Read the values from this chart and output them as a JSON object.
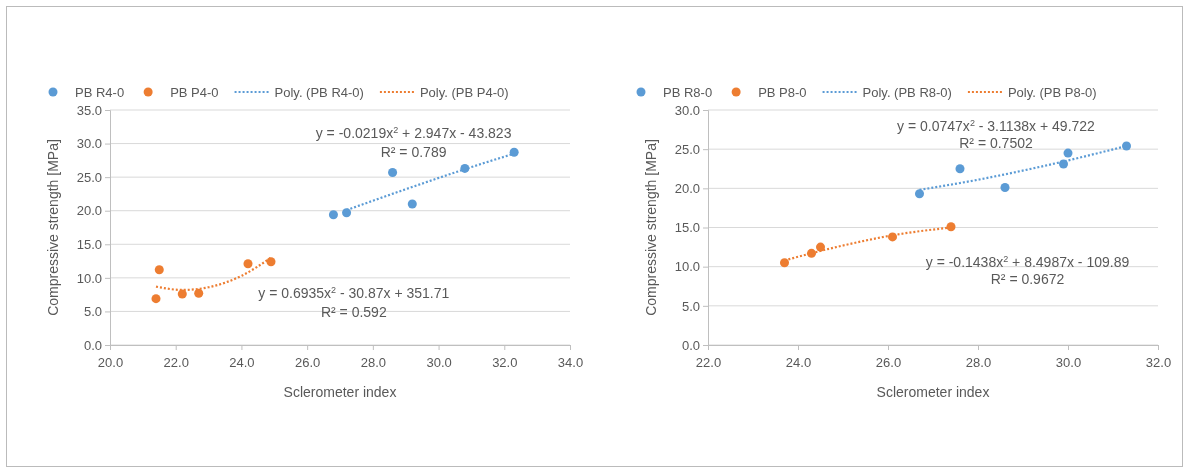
{
  "chart_data": [
    {
      "type": "scatter",
      "xlabel": "Sclerometer index",
      "ylabel": "Compressive strength [MPa]",
      "xlim": [
        20,
        34
      ],
      "xticks": [
        {
          "value": 20,
          "label": "20.0"
        },
        {
          "value": 22,
          "label": "22.0"
        },
        {
          "value": 24,
          "label": "24.0"
        },
        {
          "value": 26,
          "label": "26.0"
        },
        {
          "value": 28,
          "label": "28.0"
        },
        {
          "value": 30,
          "label": "30.0"
        },
        {
          "value": 32,
          "label": "32.0"
        },
        {
          "value": 34,
          "label": "34.0"
        }
      ],
      "ylim": [
        0,
        35
      ],
      "yticks": [
        {
          "value": 0,
          "label": "0.0"
        },
        {
          "value": 5,
          "label": "5.0"
        },
        {
          "value": 10,
          "label": "10.0"
        },
        {
          "value": 15,
          "label": "15.0"
        },
        {
          "value": 20,
          "label": "20.0"
        },
        {
          "value": 25,
          "label": "25.0"
        },
        {
          "value": 30,
          "label": "30.0"
        },
        {
          "value": 35,
          "label": "35.0"
        }
      ],
      "grid": "y",
      "legend": "top",
      "series": [
        {
          "name": "PB R4-0",
          "color": "#5b9bd5",
          "marker": "circle",
          "x": [
            26.8,
            27.2,
            28.6,
            29.2,
            30.8,
            32.3
          ],
          "values": [
            19.4,
            19.7,
            25.7,
            21.0,
            26.3,
            28.7
          ]
        },
        {
          "name": "PB P4-0",
          "color": "#ed7d31",
          "marker": "circle",
          "x": [
            21.4,
            21.5,
            22.2,
            22.7,
            24.2,
            24.9
          ],
          "values": [
            6.9,
            11.2,
            7.6,
            7.7,
            12.1,
            12.4
          ]
        },
        {
          "name": "Poly. (PB R4-0)",
          "color": "#5b9bd5",
          "type": "line",
          "line_style": "dotted",
          "x": [
            27.2,
            29,
            31,
            32.3
          ],
          "values": [
            20.1,
            23.2,
            26.5,
            28.5
          ]
        },
        {
          "name": "Poly. (PB P4-0)",
          "color": "#ed7d31",
          "type": "line",
          "line_style": "dotted",
          "x": [
            21.4,
            22.2,
            23,
            24,
            24.9
          ],
          "values": [
            8.7,
            8.2,
            8.6,
            10.3,
            13.0
          ]
        }
      ],
      "annotations": [
        "y = -0.0219x$^{2}$ + 2.947x - 43.823",
        "R² = 0.789",
        "y = 0.6935x$^{2}$ - 30.87x + 351.71",
        "R² = 0.592"
      ]
    },
    {
      "type": "scatter",
      "xlabel": "Sclerometer index",
      "ylabel": "Compressive strength [MPa]",
      "xlim": [
        22,
        32
      ],
      "xticks": [
        {
          "value": 22,
          "label": "22.0"
        },
        {
          "value": 24,
          "label": "24.0"
        },
        {
          "value": 26,
          "label": "26.0"
        },
        {
          "value": 28,
          "label": "28.0"
        },
        {
          "value": 30,
          "label": "30.0"
        },
        {
          "value": 32,
          "label": "32.0"
        }
      ],
      "ylim": [
        0,
        30
      ],
      "yticks": [
        {
          "value": 0,
          "label": "0.0"
        },
        {
          "value": 5,
          "label": "5.0"
        },
        {
          "value": 10,
          "label": "10.0"
        },
        {
          "value": 15,
          "label": "15.0"
        },
        {
          "value": 20,
          "label": "20.0"
        },
        {
          "value": 25,
          "label": "25.0"
        },
        {
          "value": 30,
          "label": "30.0"
        }
      ],
      "grid": "y",
      "legend": "top",
      "series": [
        {
          "name": "PB R8-0",
          "color": "#5b9bd5",
          "marker": "circle",
          "x": [
            26.7,
            27.6,
            28.6,
            29.9,
            30.0,
            31.3
          ],
          "values": [
            19.3,
            22.5,
            20.1,
            23.1,
            24.5,
            25.4
          ]
        },
        {
          "name": "PB P8-0",
          "color": "#ed7d31",
          "marker": "circle",
          "x": [
            23.7,
            24.3,
            24.5,
            26.1,
            27.4
          ],
          "values": [
            10.5,
            11.7,
            12.5,
            13.8,
            15.1
          ]
        },
        {
          "name": "Poly. (PB R8-0)",
          "color": "#5b9bd5",
          "type": "line",
          "line_style": "dotted",
          "x": [
            26.7,
            28,
            29.5,
            31.3
          ],
          "values": [
            19.8,
            21.1,
            22.9,
            25.4
          ]
        },
        {
          "name": "Poly. (PB P8-0)",
          "color": "#ed7d31",
          "type": "line",
          "line_style": "dotted",
          "x": [
            23.7,
            25,
            26.2,
            27.4
          ],
          "values": [
            10.8,
            12.7,
            14.1,
            15.0
          ]
        }
      ],
      "annotations": [
        "y = 0.0747x$^{2}$ - 3.1138x + 49.722",
        "R² = 0.7502",
        "y = -0.1438x$^{2}$ + 8.4987x - 109.89",
        "R² = 0.9672"
      ]
    }
  ]
}
